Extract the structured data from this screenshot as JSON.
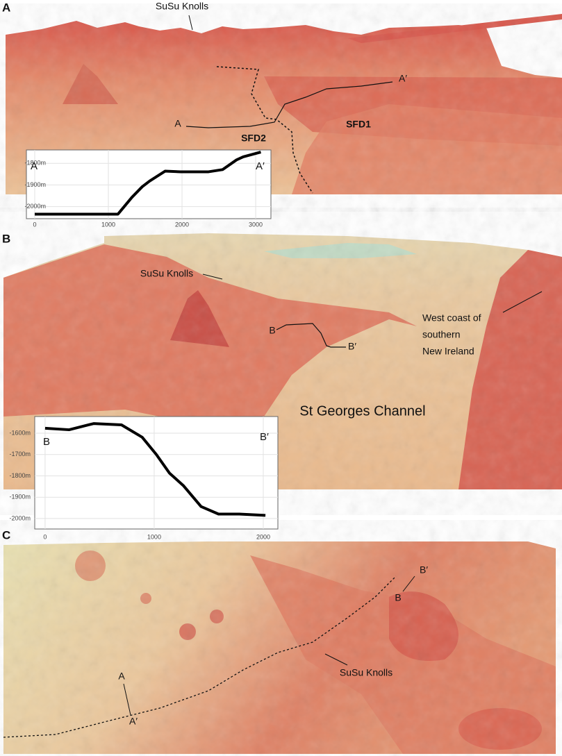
{
  "panel_a": {
    "letter": "A",
    "labels": {
      "susu": "SuSu Knolls",
      "a": "A",
      "a_prime": "A′",
      "sfd2": "SFD2",
      "sfd1": "SFD1"
    },
    "profile": {
      "type": "line",
      "start_label": "A",
      "end_label": "A′",
      "x": [
        0,
        1130,
        1320,
        1460,
        1560,
        1770,
        1980,
        2360,
        2550,
        2740,
        2830,
        3070
      ],
      "y": [
        -2035,
        -2035,
        -1957,
        -1908,
        -1882,
        -1836,
        -1839,
        -1839,
        -1829,
        -1784,
        -1770,
        -1748
      ],
      "xlim": [
        -113,
        3207
      ],
      "ylim": [
        -2056,
        -1738
      ],
      "xticks": [
        0,
        1000,
        2000,
        3000
      ],
      "yticks": [
        {
          "value": -2000,
          "label": "-2000m"
        },
        {
          "value": -1900,
          "label": "-1900m"
        },
        {
          "value": -1800,
          "label": "-1800m"
        }
      ],
      "grid": true,
      "color": "#000000"
    }
  },
  "panel_b": {
    "letter": "B",
    "labels": {
      "susu": "SuSu Knolls",
      "b": "B",
      "b_prime": "B′",
      "west_coast": [
        "West coast of",
        "southern",
        "New Ireland"
      ],
      "channel": "St Georges Channel"
    },
    "profile": {
      "type": "line",
      "start_label": "B",
      "end_label": "B′",
      "x": [
        0,
        220,
        445,
        700,
        890,
        1020,
        1140,
        1270,
        1430,
        1590,
        1780,
        2020
      ],
      "y": [
        -1577,
        -1584,
        -1555,
        -1561,
        -1619,
        -1700,
        -1787,
        -1847,
        -1944,
        -1979,
        -1979,
        -1985
      ],
      "xlim": [
        -95,
        2134
      ],
      "ylim": [
        -2049,
        -1522
      ],
      "xticks": [
        0,
        1000,
        2000
      ],
      "yticks": [
        {
          "value": -2000,
          "label": "-2000m"
        },
        {
          "value": -1900,
          "label": "-1900m"
        },
        {
          "value": -1800,
          "label": "-1800m"
        },
        {
          "value": -1700,
          "label": "-1700m"
        },
        {
          "value": -1600,
          "label": "-1600m"
        }
      ],
      "grid": true,
      "color": "#000000"
    }
  },
  "panel_c": {
    "letter": "C",
    "labels": {
      "a": "A",
      "a_prime": "A′",
      "b_prime": "B′",
      "b": "B",
      "susu": "SuSu Knolls"
    }
  }
}
